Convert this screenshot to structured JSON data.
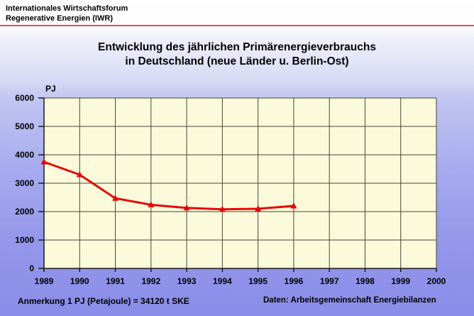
{
  "header": {
    "line1": "Internationales Wirtschaftsforum",
    "line2": "Regenerative Energien (IWR)"
  },
  "title": {
    "line1": "Entwicklung des jährlichen Primärenergieverbrauchs",
    "line2": "in Deutschland (neue Länder u. Berlin-Ost)"
  },
  "footer": {
    "note": "Anmerkung 1 PJ (Petajoule) = 34120 t SKE",
    "source": "Daten: Arbeitsgemeinschaft Energiebilanzen"
  },
  "colors": {
    "separator_red": "#e25151",
    "plot_background": "#fbfbdb",
    "grid": "#45453b",
    "axis": "#1a1a1a",
    "series_red": "#e60808",
    "page_gradient_top": "#ffffff",
    "page_gradient_bottom": "#8a8de8"
  },
  "chart_data": {
    "type": "line",
    "title": "Entwicklung des jährlichen Primärenergieverbrauchs in Deutschland (neue Länder u. Berlin-Ost)",
    "xlabel": "",
    "ylabel": "PJ",
    "x_ticks": [
      1989,
      1990,
      1991,
      1992,
      1993,
      1994,
      1995,
      1996,
      1997,
      1998,
      1999,
      2000
    ],
    "y_ticks": [
      0,
      1000,
      2000,
      3000,
      4000,
      5000,
      6000
    ],
    "xlim": [
      1989,
      2000
    ],
    "ylim": [
      0,
      6000
    ],
    "grid": true,
    "legend": "none",
    "series": [
      {
        "name": "Primärenergieverbrauch",
        "x": [
          1989,
          1990,
          1991,
          1992,
          1993,
          1994,
          1995,
          1996
        ],
        "values": [
          3750,
          3300,
          2470,
          2240,
          2130,
          2080,
          2100,
          2200
        ],
        "color": "#e60808",
        "marker": "triangle-up"
      }
    ]
  }
}
